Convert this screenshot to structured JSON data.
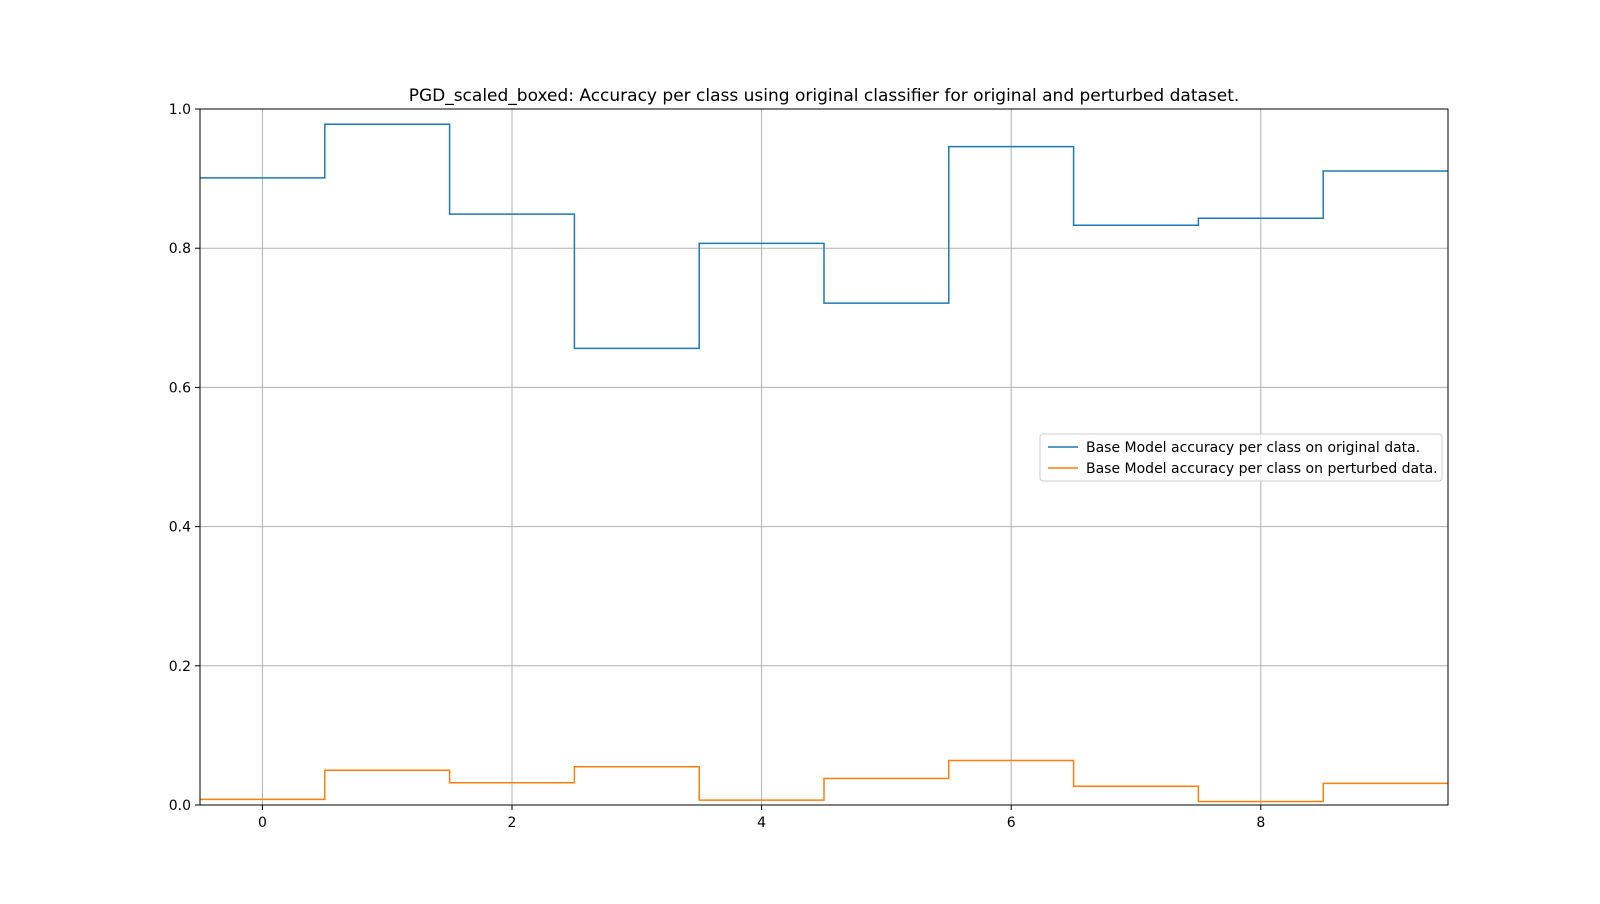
{
  "chart_data": {
    "type": "line",
    "drawstyle": "steps-mid",
    "title": "PGD_scaled_boxed: Accuracy per class using original classifier for original and perturbed dataset.",
    "xlabel": "",
    "ylabel": "",
    "x": [
      0,
      1,
      2,
      3,
      4,
      5,
      6,
      7,
      8,
      9
    ],
    "xlim": [
      -0.5,
      9.5
    ],
    "ylim": [
      0.0,
      1.0
    ],
    "xticks": [
      0,
      2,
      4,
      6,
      8
    ],
    "yticks": [
      0.0,
      0.2,
      0.4,
      0.6,
      0.8,
      1.0
    ],
    "xtick_labels": [
      "0",
      "2",
      "4",
      "6",
      "8"
    ],
    "ytick_labels": [
      "0.0",
      "0.2",
      "0.4",
      "0.6",
      "0.8",
      "1.0"
    ],
    "grid": true,
    "legend_position": "center-right",
    "series": [
      {
        "name": "Base Model accuracy per class on original data.",
        "color": "#1f77b4",
        "values": [
          0.901,
          0.978,
          0.849,
          0.656,
          0.807,
          0.721,
          0.946,
          0.833,
          0.843,
          0.911
        ]
      },
      {
        "name": "Base Model accuracy per class on perturbed data.",
        "color": "#ff7f0e",
        "values": [
          0.008,
          0.05,
          0.032,
          0.055,
          0.007,
          0.038,
          0.064,
          0.027,
          0.005,
          0.031
        ]
      }
    ]
  }
}
